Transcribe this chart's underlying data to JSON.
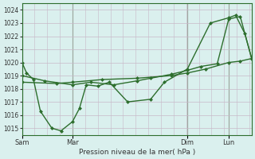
{
  "bg_color": "#daf0ee",
  "grid_color": "#c8c8d8",
  "line_color": "#2d6e2d",
  "xlabel": "Pression niveau de la mer( hPa )",
  "ylim": [
    1014.5,
    1024.5
  ],
  "yticks": [
    1015,
    1016,
    1017,
    1018,
    1019,
    1020,
    1021,
    1022,
    1023,
    1024
  ],
  "xtick_labels": [
    "Sam",
    "Mar",
    "Dim",
    "Lun"
  ],
  "xtick_positions": [
    0,
    22,
    72,
    90
  ],
  "line1_x": [
    0,
    2,
    5,
    8,
    13,
    17,
    22,
    25,
    28,
    33,
    38,
    46,
    56,
    62,
    72,
    82,
    90,
    93,
    97,
    100
  ],
  "line1_y": [
    1020.0,
    1019.2,
    1018.7,
    1016.3,
    1015.0,
    1014.8,
    1015.5,
    1016.5,
    1018.3,
    1018.2,
    1018.5,
    1017.0,
    1017.2,
    1018.5,
    1019.5,
    1023.0,
    1023.4,
    1023.6,
    1022.2,
    1020.3
  ],
  "line2_x": [
    0,
    15,
    22,
    35,
    50,
    65,
    72,
    80,
    90,
    95,
    100
  ],
  "line2_y": [
    1018.5,
    1018.4,
    1018.5,
    1018.7,
    1018.8,
    1019.0,
    1019.2,
    1019.5,
    1020.0,
    1020.1,
    1020.3
  ],
  "line3_x": [
    0,
    10,
    22,
    30,
    40,
    50,
    56,
    65,
    72,
    78,
    85,
    90,
    95,
    100
  ],
  "line3_y": [
    1019.0,
    1018.6,
    1018.3,
    1018.5,
    1018.3,
    1018.6,
    1018.8,
    1019.1,
    1019.4,
    1019.7,
    1019.9,
    1023.3,
    1023.5,
    1020.3
  ]
}
